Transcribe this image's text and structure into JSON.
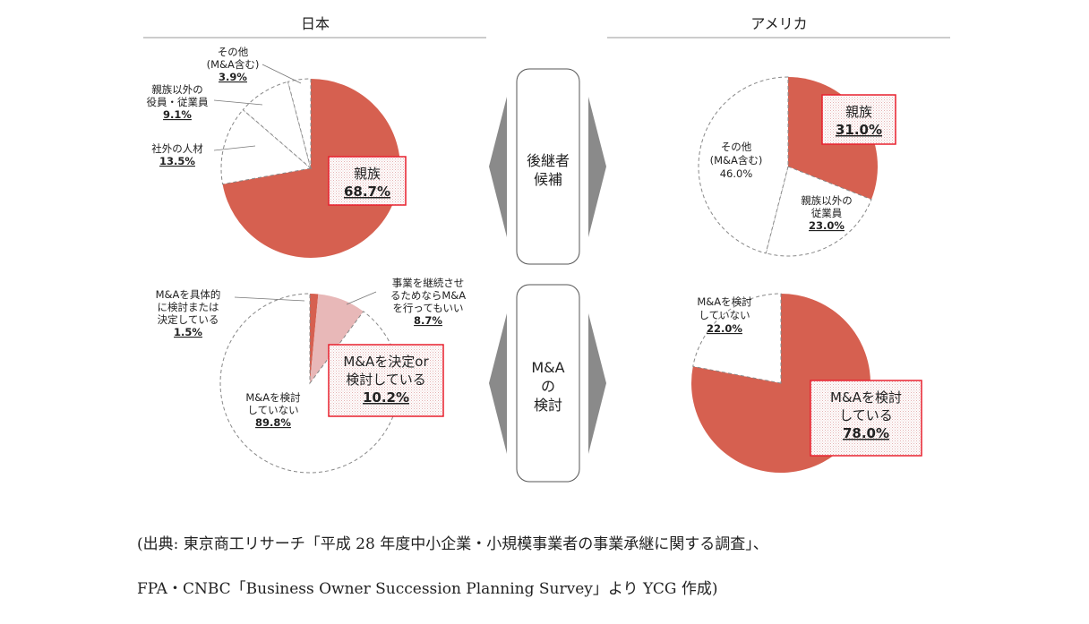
{
  "headers": {
    "japan": "日本",
    "usa": "アメリカ"
  },
  "center": {
    "successor": [
      "後継者",
      "候補"
    ],
    "ma": [
      "M&A",
      "の",
      "検討"
    ]
  },
  "colors": {
    "red": "#d66050",
    "pink": "#e8b8b8",
    "outline": "#888888",
    "box_border": "#e8212e"
  },
  "source": {
    "line1": "(出典: 東京商工リサーチ「平成 28 年度中小企業・小規模事業者の事業承継に関する調査」、",
    "line2": "FPA・CNBC「Business Owner Succession Planning Survey」より YCG 作成)"
  },
  "chart_data": [
    {
      "id": "jp-successor",
      "type": "pie",
      "title": "日本 — 後継者候補",
      "series": [
        {
          "name": "親族",
          "value": 68.7,
          "label_lines": [
            "親族"
          ],
          "value_text": "68.7%",
          "style": "solid-red",
          "boxed": true
        },
        {
          "name": "社外の人材",
          "value": 13.5,
          "label_lines": [
            "社外の人材"
          ],
          "value_text": "13.5%",
          "style": "outline"
        },
        {
          "name": "親族以外の役員・従業員",
          "value": 9.1,
          "label_lines": [
            "親族以外の",
            "役員・従業員"
          ],
          "value_text": "9.1%",
          "style": "outline"
        },
        {
          "name": "その他(M&A含む)",
          "value": 3.9,
          "label_lines": [
            "その他",
            "(M&A含む)"
          ],
          "value_text": "3.9%",
          "style": "outline"
        }
      ]
    },
    {
      "id": "us-successor",
      "type": "pie",
      "title": "アメリカ — 後継者候補",
      "series": [
        {
          "name": "親族",
          "value": 31.0,
          "label_lines": [
            "親族"
          ],
          "value_text": "31.0%",
          "style": "solid-red",
          "boxed": true
        },
        {
          "name": "親族以外の従業員",
          "value": 23.0,
          "label_lines": [
            "親族以外の",
            "従業員"
          ],
          "value_text": "23.0%",
          "style": "outline"
        },
        {
          "name": "その他(M&A含む)",
          "value": 46.0,
          "label_lines": [
            "その他",
            "(M&A含む)"
          ],
          "value_text": "46.0%",
          "style": "outline"
        }
      ]
    },
    {
      "id": "jp-ma",
      "type": "pie",
      "title": "日本 — M&Aの検討",
      "series": [
        {
          "name": "M&Aを具体的に検討または決定している",
          "value": 1.5,
          "label_lines": [
            "M&Aを具体的",
            "に検討または",
            "決定している"
          ],
          "value_text": "1.5%",
          "style": "solid-red"
        },
        {
          "name": "事業を継続させるためならM&Aを行ってもいい",
          "value": 8.7,
          "label_lines": [
            "事業を継続させ",
            "るためならM&A",
            "を行ってもいい"
          ],
          "value_text": "8.7%",
          "style": "pink"
        },
        {
          "name": "M&Aを検討していない",
          "value": 89.8,
          "label_lines": [
            "M&Aを検討",
            "していない"
          ],
          "value_text": "89.8%",
          "style": "outline"
        }
      ],
      "callout": {
        "lines": [
          "M&Aを決定or",
          "検討している"
        ],
        "value_text": "10.2%"
      }
    },
    {
      "id": "us-ma",
      "type": "pie",
      "title": "アメリカ — M&Aの検討",
      "series": [
        {
          "name": "M&Aを検討している",
          "value": 78.0,
          "label_lines": [
            "M&Aを検討",
            "している"
          ],
          "value_text": "78.0%",
          "style": "solid-red",
          "boxed": true
        },
        {
          "name": "M&Aを検討していない",
          "value": 22.0,
          "label_lines": [
            "M&Aを検討",
            "していない"
          ],
          "value_text": "22.0%",
          "style": "outline"
        }
      ]
    }
  ]
}
